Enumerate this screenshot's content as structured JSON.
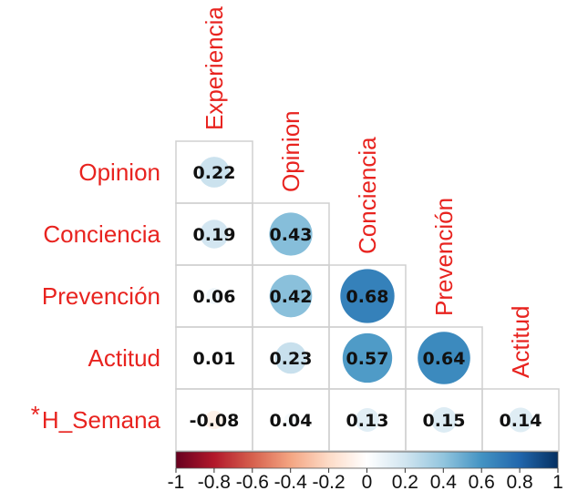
{
  "chart_data": {
    "type": "heatmap",
    "variables": [
      "Experiencia",
      "Opinion",
      "Conciencia",
      "Prevención",
      "Actitud",
      "H_Semana"
    ],
    "row_labels": [
      "Opinion",
      "Conciencia",
      "Prevención",
      "Actitud",
      "H_Semana"
    ],
    "row_label_prefixes": [
      "",
      "",
      "",
      "",
      "*"
    ],
    "column_labels": [
      "Experiencia",
      "Opinion",
      "Conciencia",
      "Prevención",
      "Actitud"
    ],
    "matrix": [
      [
        0.22
      ],
      [
        0.19,
        0.43
      ],
      [
        0.06,
        0.42,
        0.68
      ],
      [
        0.01,
        0.23,
        0.57,
        0.64
      ],
      [
        -0.08,
        0.04,
        0.13,
        0.15,
        0.14
      ]
    ],
    "value_labels": [
      [
        "0.22"
      ],
      [
        "0.19",
        "0.43"
      ],
      [
        "0.06",
        "0.42",
        "0.68"
      ],
      [
        "0.01",
        "0.23",
        "0.57",
        "0.64"
      ],
      [
        "-0.08",
        "0.04",
        "0.13",
        "0.15",
        "0.14"
      ]
    ],
    "layout": "lower-triangle",
    "color_scale": {
      "range": [
        -1,
        1
      ],
      "ticks": [
        -1,
        -0.8,
        -0.6,
        -0.4,
        -0.2,
        0,
        0.2,
        0.4,
        0.6,
        0.8,
        1
      ],
      "tick_labels": [
        "-1",
        "-0.8",
        "-0.6",
        "-0.4",
        "-0.2",
        "0",
        "0.2",
        "0.4",
        "0.6",
        "0.8",
        "1"
      ],
      "colors": [
        "#67001f",
        "#b2182b",
        "#d6604d",
        "#f4a582",
        "#fddbc7",
        "#ffffff",
        "#d1e5f0",
        "#92c5de",
        "#4393c3",
        "#2166ac",
        "#053061"
      ]
    },
    "label_color": "#e8231f",
    "title": "",
    "legend": "bottom"
  }
}
